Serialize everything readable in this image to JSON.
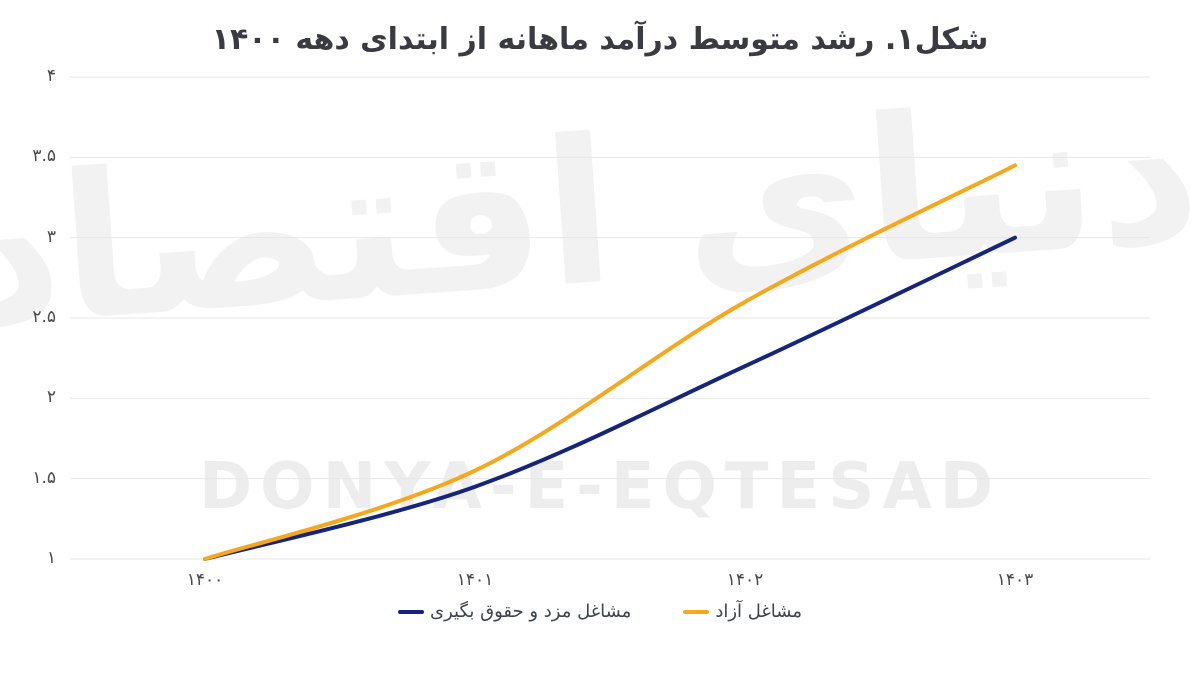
{
  "title": "شکل۱. رشد متوسط درآمد ماهانه از ابتدای دهه ۱۴۰۰",
  "watermark": {
    "persian": "دنیای اقتصاد",
    "latin": "DONYA-E-EQTESAD"
  },
  "colors": {
    "background": "#ffffff",
    "grid": "#e7e7e7",
    "title_text": "#3a3a42",
    "axis_text": "#4a4a4a",
    "legend_text": "#3d4451",
    "watermark": "#f0f0f0"
  },
  "chart_data": {
    "type": "line",
    "title": "شکل۱. رشد متوسط درآمد ماهانه از ابتدای دهه ۱۴۰۰",
    "categories": [
      "۱۴۰۰",
      "۱۴۰۱",
      "۱۴۰۲",
      "۱۴۰۳"
    ],
    "x_values": [
      1400,
      1401,
      1402,
      1403
    ],
    "y_ticks": [
      "۱",
      "۱.۵",
      "۲",
      "۲.۵",
      "۳",
      "۳.۵",
      "۴"
    ],
    "y_tick_values": [
      1,
      1.5,
      2,
      2.5,
      3,
      3.5,
      4
    ],
    "ylim": [
      1,
      4
    ],
    "grid": true,
    "legend_position": "bottom",
    "line_style": "smooth",
    "series": [
      {
        "name": "مشاغل مزد و حقوق بگیری",
        "key": "wage-salary-jobs",
        "color": "#16257c",
        "values": [
          1.0,
          1.45,
          2.2,
          3.0
        ]
      },
      {
        "name": "مشاغل آزاد",
        "key": "self-employed",
        "color": "#f7a71c",
        "values": [
          1.0,
          1.55,
          2.6,
          3.45
        ]
      }
    ]
  }
}
